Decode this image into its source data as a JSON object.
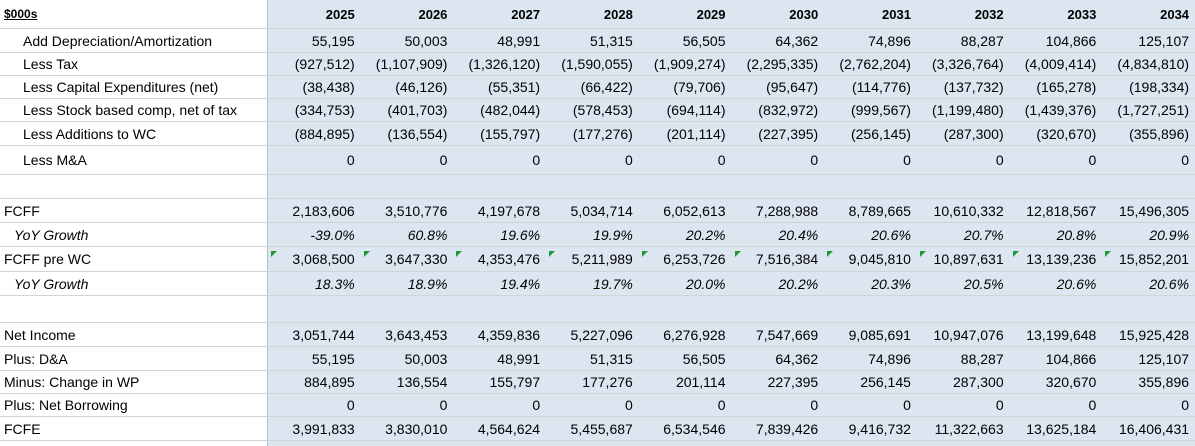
{
  "header": {
    "unit_label": "$000s",
    "years": [
      "2025",
      "2026",
      "2027",
      "2028",
      "2029",
      "2030",
      "2031",
      "2032",
      "2033",
      "2034"
    ]
  },
  "rows": {
    "dep": {
      "label": "Add Depreciation/Amortization",
      "values": [
        "55,195",
        "50,003",
        "48,991",
        "51,315",
        "56,505",
        "64,362",
        "74,896",
        "88,287",
        "104,866",
        "125,107"
      ]
    },
    "tax": {
      "label": "Less Tax",
      "values": [
        "(927,512)",
        "(1,107,909)",
        "(1,326,120)",
        "(1,590,055)",
        "(1,909,274)",
        "(2,295,335)",
        "(2,762,204)",
        "(3,326,764)",
        "(4,009,414)",
        "(4,834,810)"
      ]
    },
    "capex": {
      "label": "Less Capital Expenditures (net)",
      "values": [
        "(38,438)",
        "(46,126)",
        "(55,351)",
        "(66,422)",
        "(79,706)",
        "(95,647)",
        "(114,776)",
        "(137,732)",
        "(165,278)",
        "(198,334)"
      ]
    },
    "sbc": {
      "label": "Less Stock based comp, net of tax",
      "values": [
        "(334,753)",
        "(401,703)",
        "(482,044)",
        "(578,453)",
        "(694,114)",
        "(832,972)",
        "(999,567)",
        "(1,199,480)",
        "(1,439,376)",
        "(1,727,251)"
      ]
    },
    "wc": {
      "label": "Less Additions to WC",
      "values": [
        "(884,895)",
        "(136,554)",
        "(155,797)",
        "(177,276)",
        "(201,114)",
        "(227,395)",
        "(256,145)",
        "(287,300)",
        "(320,670)",
        "(355,896)"
      ]
    },
    "ma": {
      "label": "Less M&A",
      "values": [
        "0",
        "0",
        "0",
        "0",
        "0",
        "0",
        "0",
        "0",
        "0",
        "0"
      ]
    },
    "fcff": {
      "label": "FCFF",
      "values": [
        "2,183,606",
        "3,510,776",
        "4,197,678",
        "5,034,714",
        "6,052,613",
        "7,288,988",
        "8,789,665",
        "10,610,332",
        "12,818,567",
        "15,496,305"
      ]
    },
    "fcff_growth": {
      "label": "YoY Growth",
      "values": [
        "-39.0%",
        "60.8%",
        "19.6%",
        "19.9%",
        "20.2%",
        "20.4%",
        "20.6%",
        "20.7%",
        "20.8%",
        "20.9%"
      ]
    },
    "fcff_pre": {
      "label": "FCFF pre WC",
      "values": [
        "3,068,500",
        "3,647,330",
        "4,353,476",
        "5,211,989",
        "6,253,726",
        "7,516,384",
        "9,045,810",
        "10,897,631",
        "13,139,236",
        "15,852,201"
      ]
    },
    "fcff_pre_growth": {
      "label": "YoY Growth",
      "values": [
        "18.3%",
        "18.9%",
        "19.4%",
        "19.7%",
        "20.0%",
        "20.2%",
        "20.3%",
        "20.5%",
        "20.6%",
        "20.6%"
      ]
    },
    "ni": {
      "label": "Net Income",
      "values": [
        "3,051,744",
        "3,643,453",
        "4,359,836",
        "5,227,096",
        "6,276,928",
        "7,547,669",
        "9,085,691",
        "10,947,076",
        "13,199,648",
        "15,925,428"
      ]
    },
    "da": {
      "label": "Plus: D&A",
      "values": [
        "55,195",
        "50,003",
        "48,991",
        "51,315",
        "56,505",
        "64,362",
        "74,896",
        "88,287",
        "104,866",
        "125,107"
      ]
    },
    "wp": {
      "label": "Minus: Change in WP",
      "values": [
        "884,895",
        "136,554",
        "155,797",
        "177,276",
        "201,114",
        "227,395",
        "256,145",
        "287,300",
        "320,670",
        "355,896"
      ]
    },
    "borrow": {
      "label": "Plus: Net Borrowing",
      "values": [
        "0",
        "0",
        "0",
        "0",
        "0",
        "0",
        "0",
        "0",
        "0",
        "0"
      ]
    },
    "fcfe": {
      "label": "FCFE",
      "values": [
        "3,991,833",
        "3,830,010",
        "4,564,624",
        "5,455,687",
        "6,534,546",
        "7,839,426",
        "9,416,732",
        "11,322,663",
        "13,625,184",
        "16,406,431"
      ]
    }
  }
}
